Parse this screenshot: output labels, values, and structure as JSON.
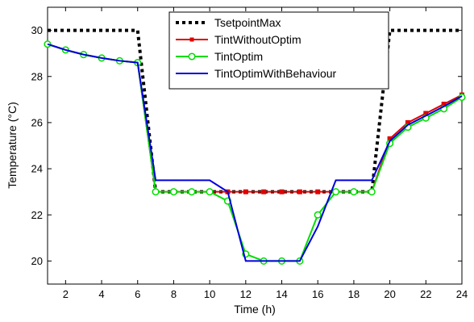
{
  "chart_data": {
    "type": "line",
    "title": "",
    "xlabel": "Time (h)",
    "ylabel": "Temperature (°C)",
    "xlim": [
      1,
      24
    ],
    "ylim": [
      19,
      31
    ],
    "xticks": [
      2,
      4,
      6,
      8,
      10,
      12,
      14,
      16,
      18,
      20,
      22,
      24
    ],
    "yticks": [
      20,
      22,
      24,
      26,
      28,
      30
    ],
    "grid": false,
    "legend_position": "top-right",
    "series": [
      {
        "name": "TsetpointMax",
        "color": "#000000",
        "style": "dotted",
        "marker": "none",
        "x": [
          1,
          6,
          7,
          19,
          20,
          24
        ],
        "y": [
          30,
          30,
          23,
          23,
          30,
          30
        ]
      },
      {
        "name": "TintWithoutOptim",
        "color": "#e00000",
        "style": "solid",
        "marker": "square",
        "x": [
          1,
          2,
          3,
          4,
          5,
          6,
          7,
          8,
          9,
          10,
          11,
          12,
          13,
          14,
          15,
          16,
          17,
          18,
          19,
          20,
          21,
          22,
          23,
          24
        ],
        "y": [
          29.4,
          29.15,
          28.95,
          28.8,
          28.68,
          28.6,
          23.0,
          23.0,
          23.0,
          23.0,
          23.0,
          23.0,
          23.0,
          23.0,
          23.0,
          23.0,
          23.0,
          23.0,
          23.0,
          25.3,
          26.0,
          26.4,
          26.8,
          27.2
        ]
      },
      {
        "name": "TintOptim",
        "color": "#00dd00",
        "style": "solid",
        "marker": "circle",
        "x": [
          1,
          2,
          3,
          4,
          5,
          6,
          7,
          8,
          9,
          10,
          11,
          12,
          13,
          14,
          15,
          16,
          17,
          18,
          19,
          20,
          21,
          22,
          23,
          24
        ],
        "y": [
          29.4,
          29.15,
          28.95,
          28.8,
          28.68,
          28.6,
          23.0,
          23.0,
          23.0,
          23.0,
          22.6,
          20.3,
          20.0,
          20.0,
          20.0,
          22.0,
          23.0,
          23.0,
          23.0,
          25.1,
          25.8,
          26.2,
          26.6,
          27.1
        ]
      },
      {
        "name": "TintOptimWithBehaviour",
        "color": "#0000dd",
        "style": "solid",
        "marker": "none",
        "x": [
          1,
          2,
          3,
          4,
          5,
          6,
          7,
          8,
          9,
          10,
          11,
          12,
          13,
          14,
          15,
          16,
          17,
          18,
          19,
          20,
          21,
          22,
          23,
          24
        ],
        "y": [
          29.4,
          29.15,
          28.95,
          28.8,
          28.68,
          28.6,
          23.5,
          23.5,
          23.5,
          23.5,
          23.0,
          20.0,
          20.0,
          20.0,
          20.0,
          21.5,
          23.5,
          23.5,
          23.5,
          25.2,
          25.9,
          26.3,
          26.7,
          27.15
        ]
      }
    ]
  }
}
